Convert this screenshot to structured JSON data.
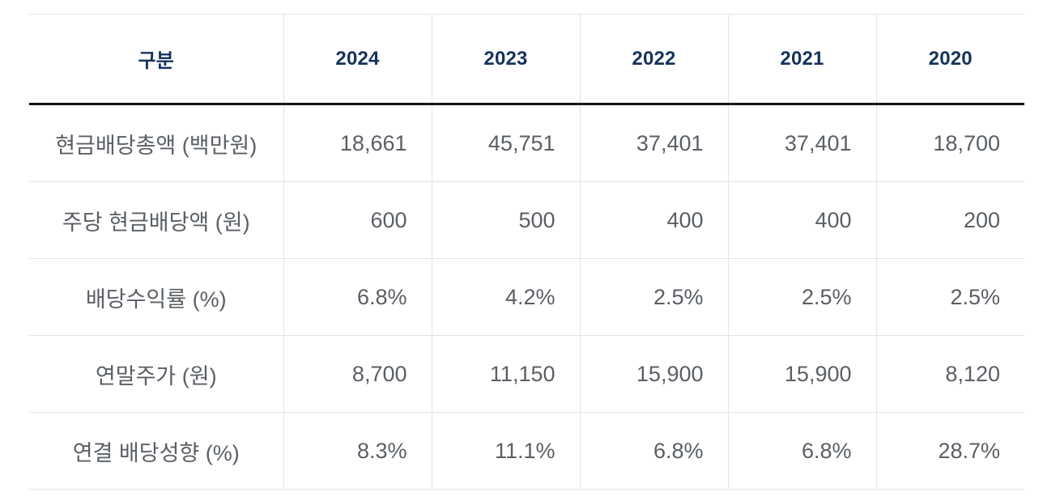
{
  "chart_data": {
    "type": "table",
    "columns": [
      "구분",
      "2024",
      "2023",
      "2022",
      "2021",
      "2020"
    ],
    "rows": [
      {
        "label": "현금배당총액 (백만원)",
        "values": [
          "18,661",
          "45,751",
          "37,401",
          "37,401",
          "18,700"
        ]
      },
      {
        "label": "주당 현금배당액 (원)",
        "values": [
          "600",
          "500",
          "400",
          "400",
          "200"
        ]
      },
      {
        "label": "배당수익률 (%)",
        "values": [
          "6.8%",
          "4.2%",
          "2.5%",
          "2.5%",
          "2.5%"
        ]
      },
      {
        "label": "연말주가 (원)",
        "values": [
          "8,700",
          "11,150",
          "15,900",
          "15,900",
          "8,120"
        ]
      },
      {
        "label": "연결 배당성향 (%)",
        "values": [
          "8.3%",
          "11.1%",
          "6.8%",
          "6.8%",
          "28.7%"
        ]
      }
    ]
  },
  "colors": {
    "header_text": "#17335c",
    "body_text": "#5a5f66",
    "border_light": "#e3e3e3",
    "border_heavy": "#141414"
  }
}
